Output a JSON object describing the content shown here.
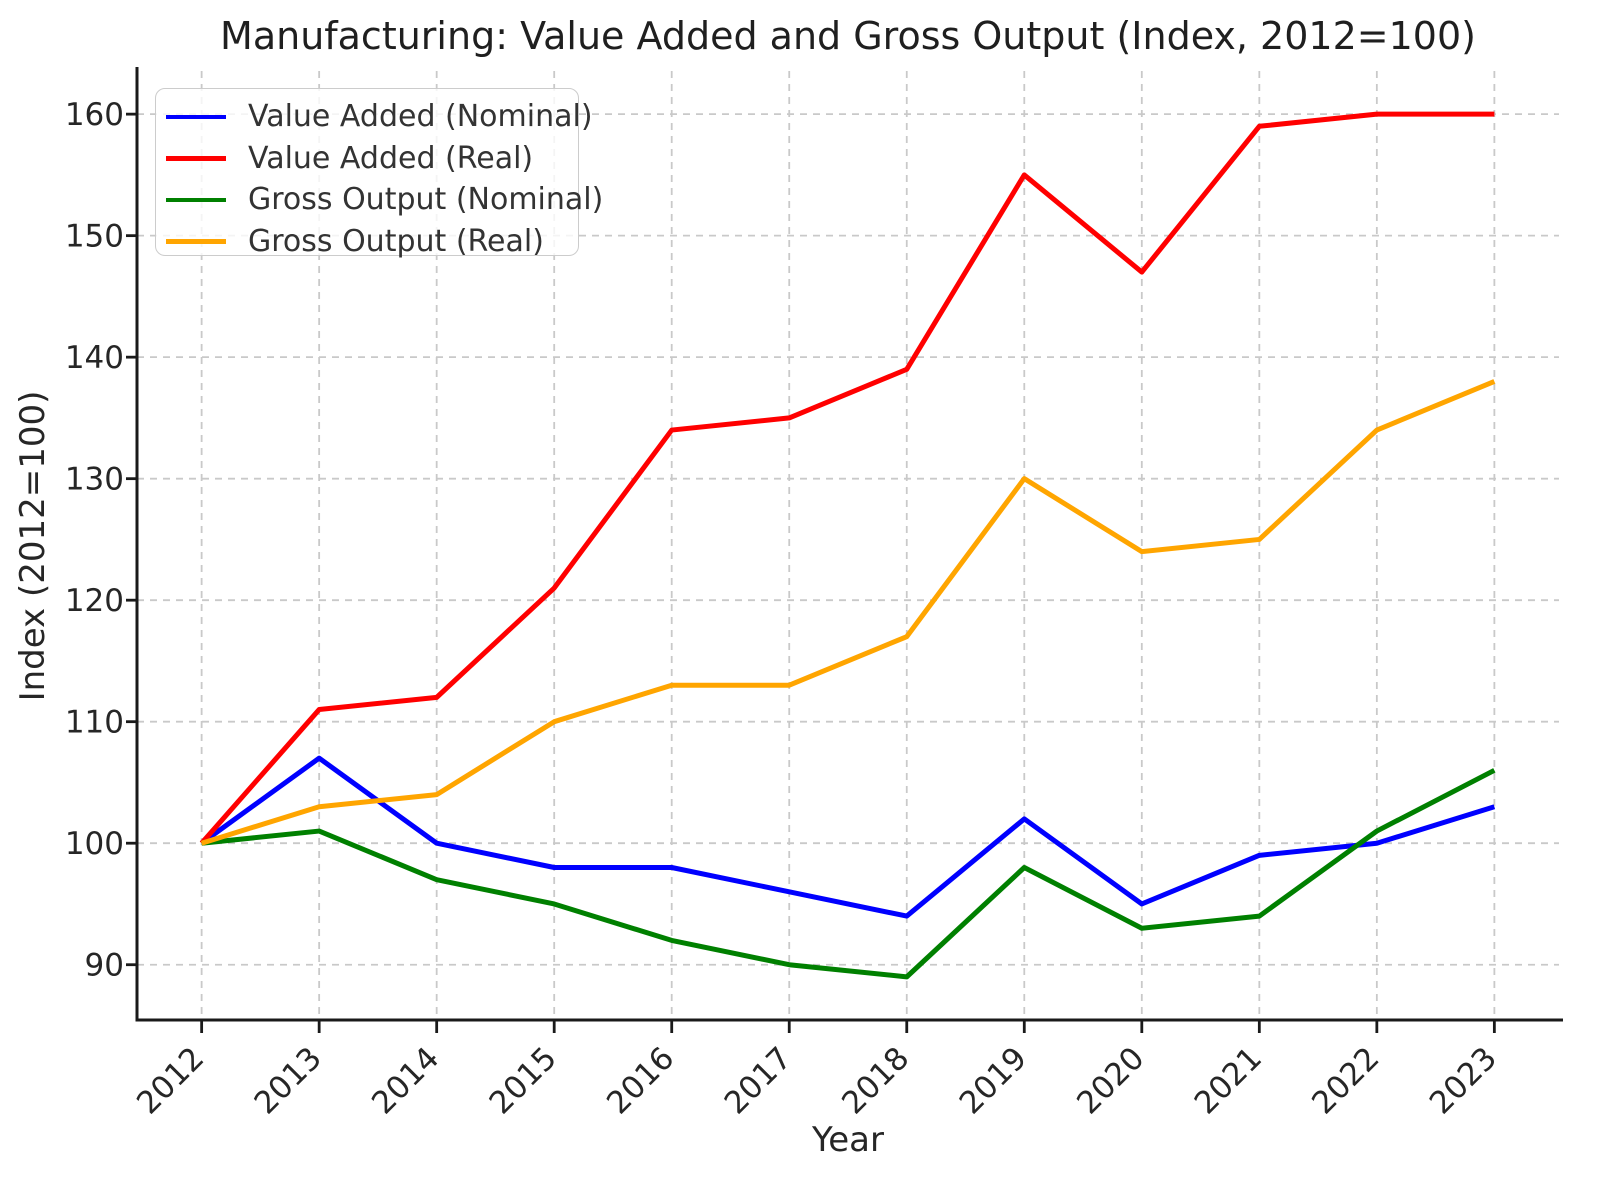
{
  "chart_data": {
    "type": "line",
    "title": "Manufacturing: Value Added and Gross Output (Index, 2012=100)",
    "xlabel": "Year",
    "ylabel": "Index (2012=100)",
    "x": [
      2012,
      2013,
      2014,
      2015,
      2016,
      2017,
      2018,
      2019,
      2020,
      2021,
      2022,
      2023
    ],
    "series": [
      {
        "name": "Value Added (Nominal)",
        "color": "#0000ff",
        "values": [
          100,
          107,
          100,
          98,
          98,
          96,
          94,
          102,
          95,
          99,
          100,
          103
        ]
      },
      {
        "name": "Value Added (Real)",
        "color": "#ff0000",
        "values": [
          100,
          111,
          112,
          121,
          134,
          135,
          139,
          155,
          147,
          159,
          160,
          160
        ]
      },
      {
        "name": "Gross Output (Nominal)",
        "color": "#008000",
        "values": [
          100,
          101,
          97,
          95,
          92,
          90,
          89,
          98,
          93,
          94,
          101,
          106
        ]
      },
      {
        "name": "Gross Output (Real)",
        "color": "#ffa500",
        "values": [
          100,
          103,
          104,
          110,
          113,
          113,
          117,
          130,
          124,
          125,
          134,
          138
        ]
      }
    ],
    "yticks": [
      90,
      100,
      110,
      120,
      130,
      140,
      150,
      160
    ],
    "xlim": [
      2011.45,
      2023.55
    ],
    "ylim": [
      85.45,
      163.55
    ],
    "grid": true,
    "legend_position": "upper left"
  }
}
